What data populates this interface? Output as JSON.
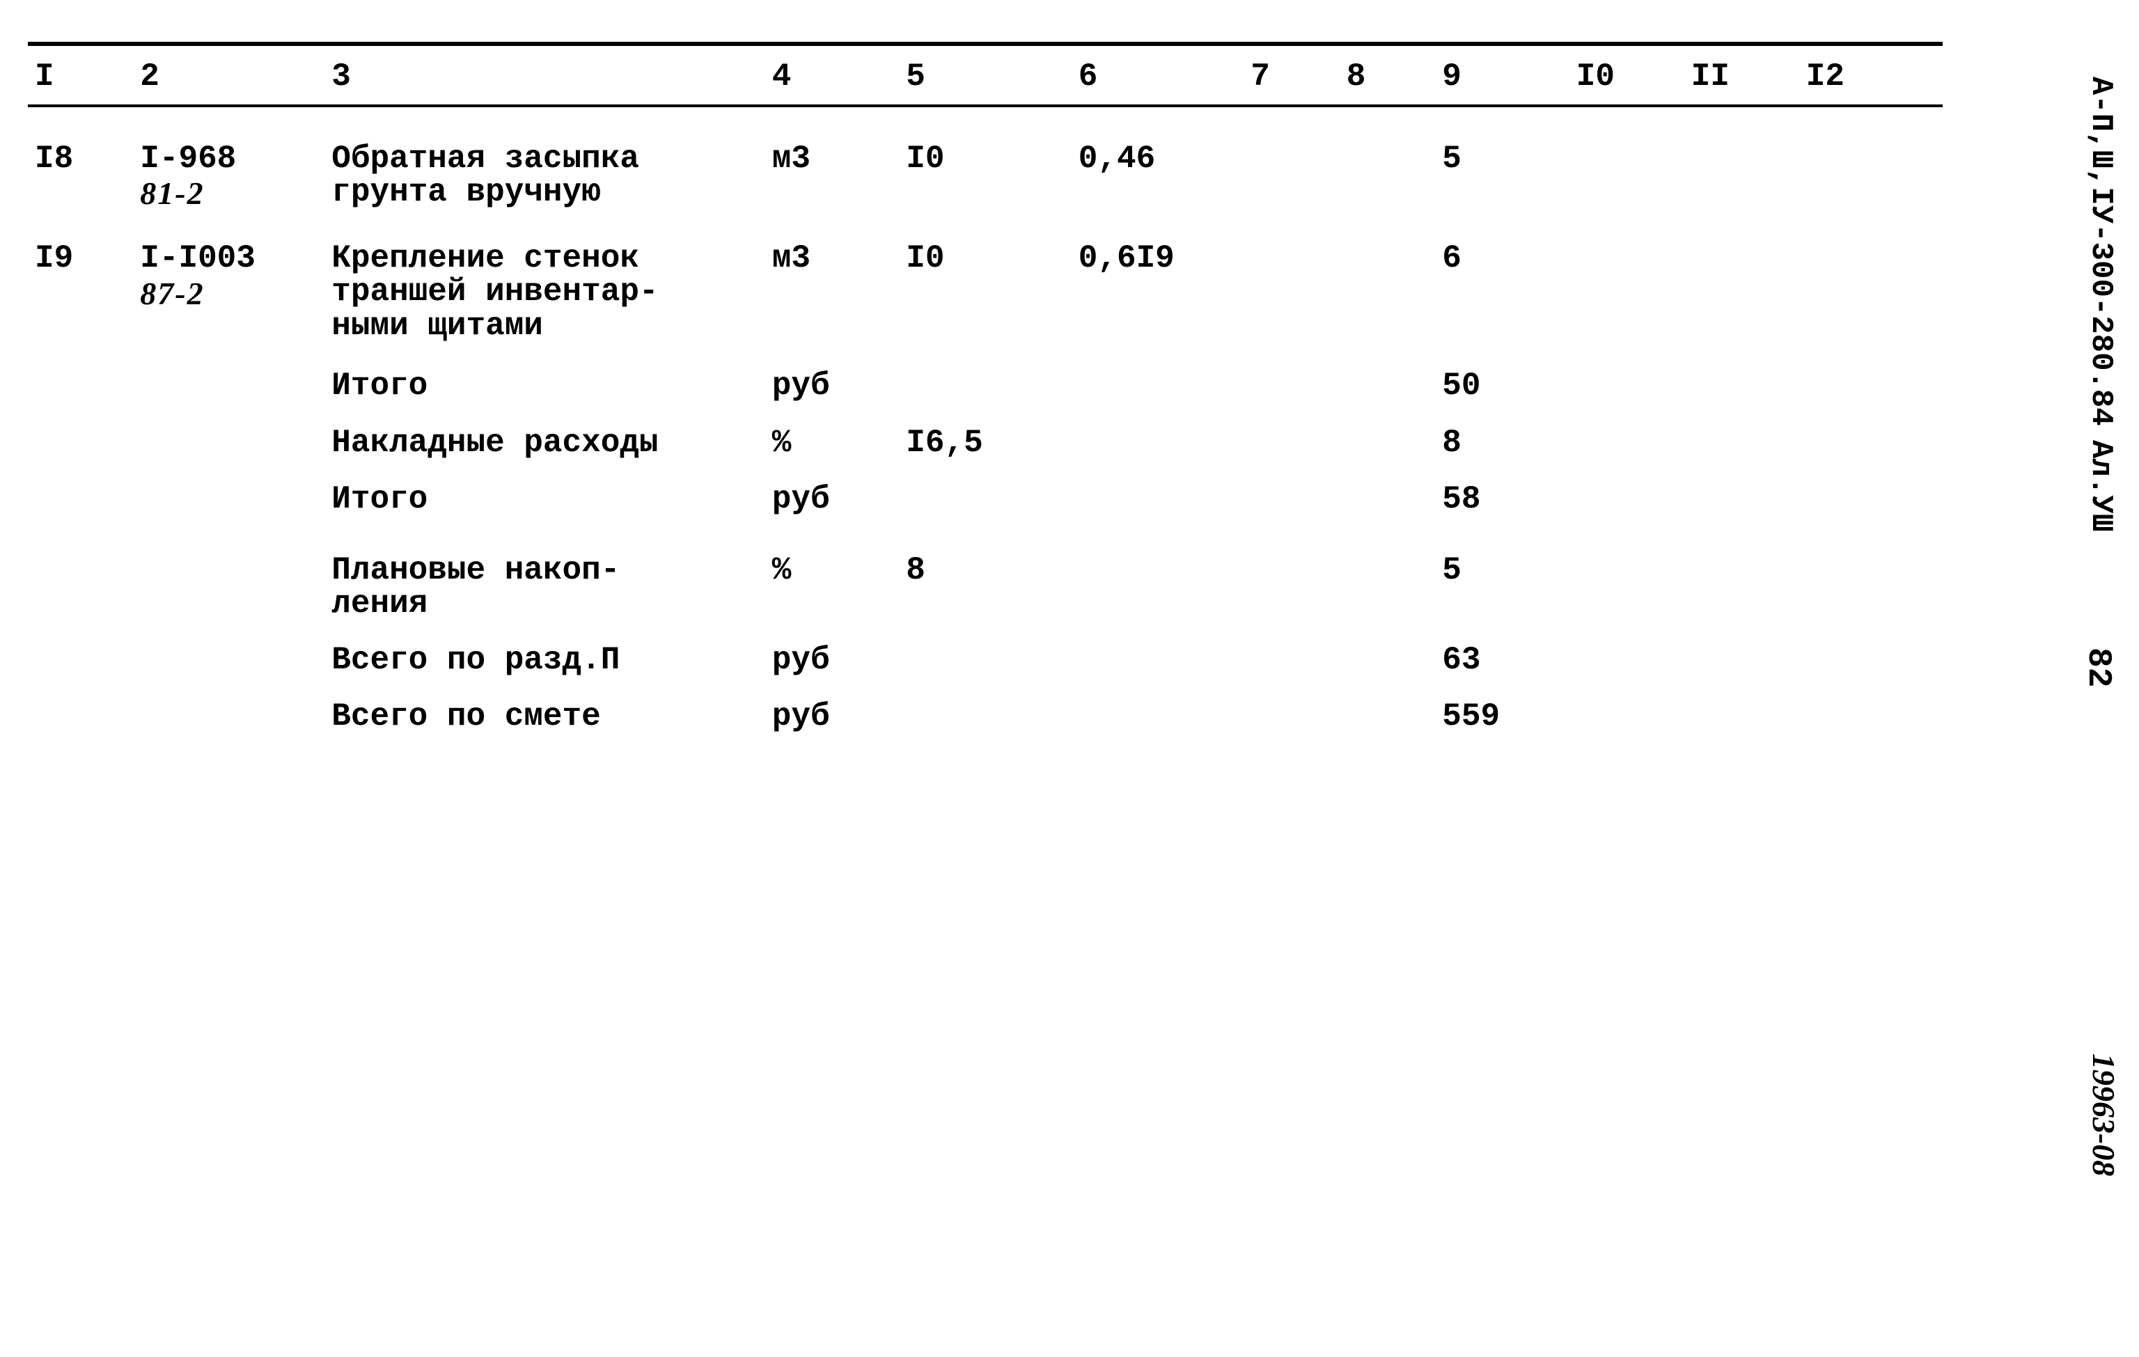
{
  "header": {
    "doc_code": "А-П,Ш,IУ-300-280.84",
    "album": "Ал.УШ",
    "page_no": "82",
    "bottom_code": "19963-08"
  },
  "table": {
    "columns": [
      "I",
      "2",
      "3",
      "4",
      "5",
      "6",
      "7",
      "8",
      "9",
      "I0",
      "II",
      "I2"
    ],
    "rows": [
      {
        "n": "I8",
        "code": "I-968",
        "code_sub": "81-2",
        "desc": "Обратная засыпка грунта вручную",
        "unit": "м3",
        "c5": "I0",
        "c6": "0,46",
        "c9": "5"
      },
      {
        "n": "I9",
        "code": "I-I003",
        "code_sub": "87-2",
        "desc": "Крепление стенок траншей инвентар-\nными щитами",
        "unit": "м3",
        "c5": "I0",
        "c6": "0,6I9",
        "c9": "6"
      },
      {
        "desc": "Итого",
        "unit": "руб",
        "c9": "50"
      },
      {
        "desc": "Накладные расходы",
        "unit": "%",
        "c5": "I6,5",
        "c9": "8"
      },
      {
        "desc": "Итого",
        "unit": "руб",
        "c9": "58"
      },
      {
        "gap": true,
        "desc": "Плановые накоп-\nления",
        "unit": "%",
        "c5": "8",
        "c9": "5"
      },
      {
        "desc": "Всего по разд.П",
        "unit": "руб",
        "c9": "63"
      },
      {
        "desc": "Всего по смете",
        "unit": "руб",
        "c9": "559"
      }
    ]
  }
}
